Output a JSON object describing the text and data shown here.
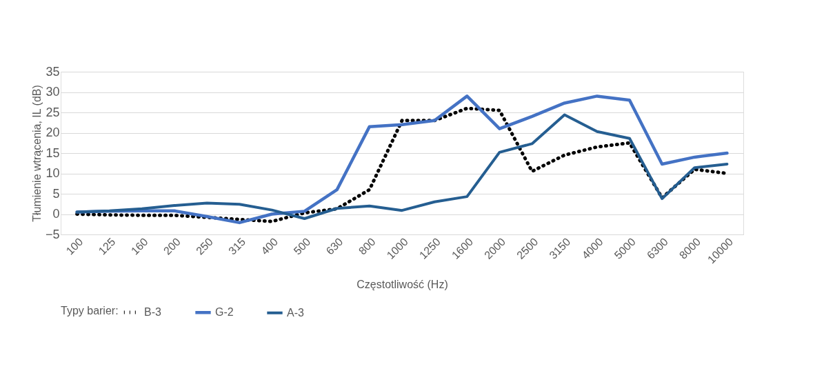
{
  "chart_data": {
    "type": "line",
    "xlabel": "Częstotliwość (Hz)",
    "ylabel": "Tłumienie wtrącenia, IL (dB)",
    "legend_title": "Typy barier:",
    "categories": [
      "100",
      "125",
      "160",
      "200",
      "250",
      "315",
      "400",
      "500",
      "630",
      "800",
      "1000",
      "1250",
      "1600",
      "2000",
      "2500",
      "3150",
      "4000",
      "5000",
      "6300",
      "8000",
      "10000"
    ],
    "series": [
      {
        "name": "B-3",
        "color": "#000000",
        "line_style": "dotted",
        "values": [
          0,
          -0.2,
          -0.3,
          -0.3,
          -0.8,
          -1.3,
          -1.8,
          0.3,
          1.3,
          6,
          23,
          23,
          26,
          25.5,
          10.5,
          14.5,
          16.5,
          17.5,
          4,
          11,
          10
        ]
      },
      {
        "name": "G-2",
        "color": "#4472c4",
        "line_style": "solid",
        "values": [
          0.5,
          0.7,
          0.8,
          0.8,
          -0.6,
          -2.1,
          0,
          0.7,
          6,
          21.5,
          22,
          23,
          29,
          21,
          24,
          27.3,
          29,
          28,
          12.3,
          14,
          15
        ]
      },
      {
        "name": "A-3",
        "color": "#255e91",
        "line_style": "solid",
        "values": [
          0.5,
          0.8,
          1.3,
          2.1,
          2.7,
          2.4,
          1,
          -1.1,
          1.4,
          2,
          0.9,
          3,
          4.3,
          15.2,
          17.3,
          24.4,
          20.3,
          18.6,
          3.8,
          11.4,
          12.3
        ]
      }
    ],
    "ylim": [
      -5,
      35
    ],
    "yticks": [
      -5,
      0,
      5,
      10,
      15,
      20,
      25,
      30,
      35
    ],
    "grid": "y",
    "legend": "bottom"
  }
}
